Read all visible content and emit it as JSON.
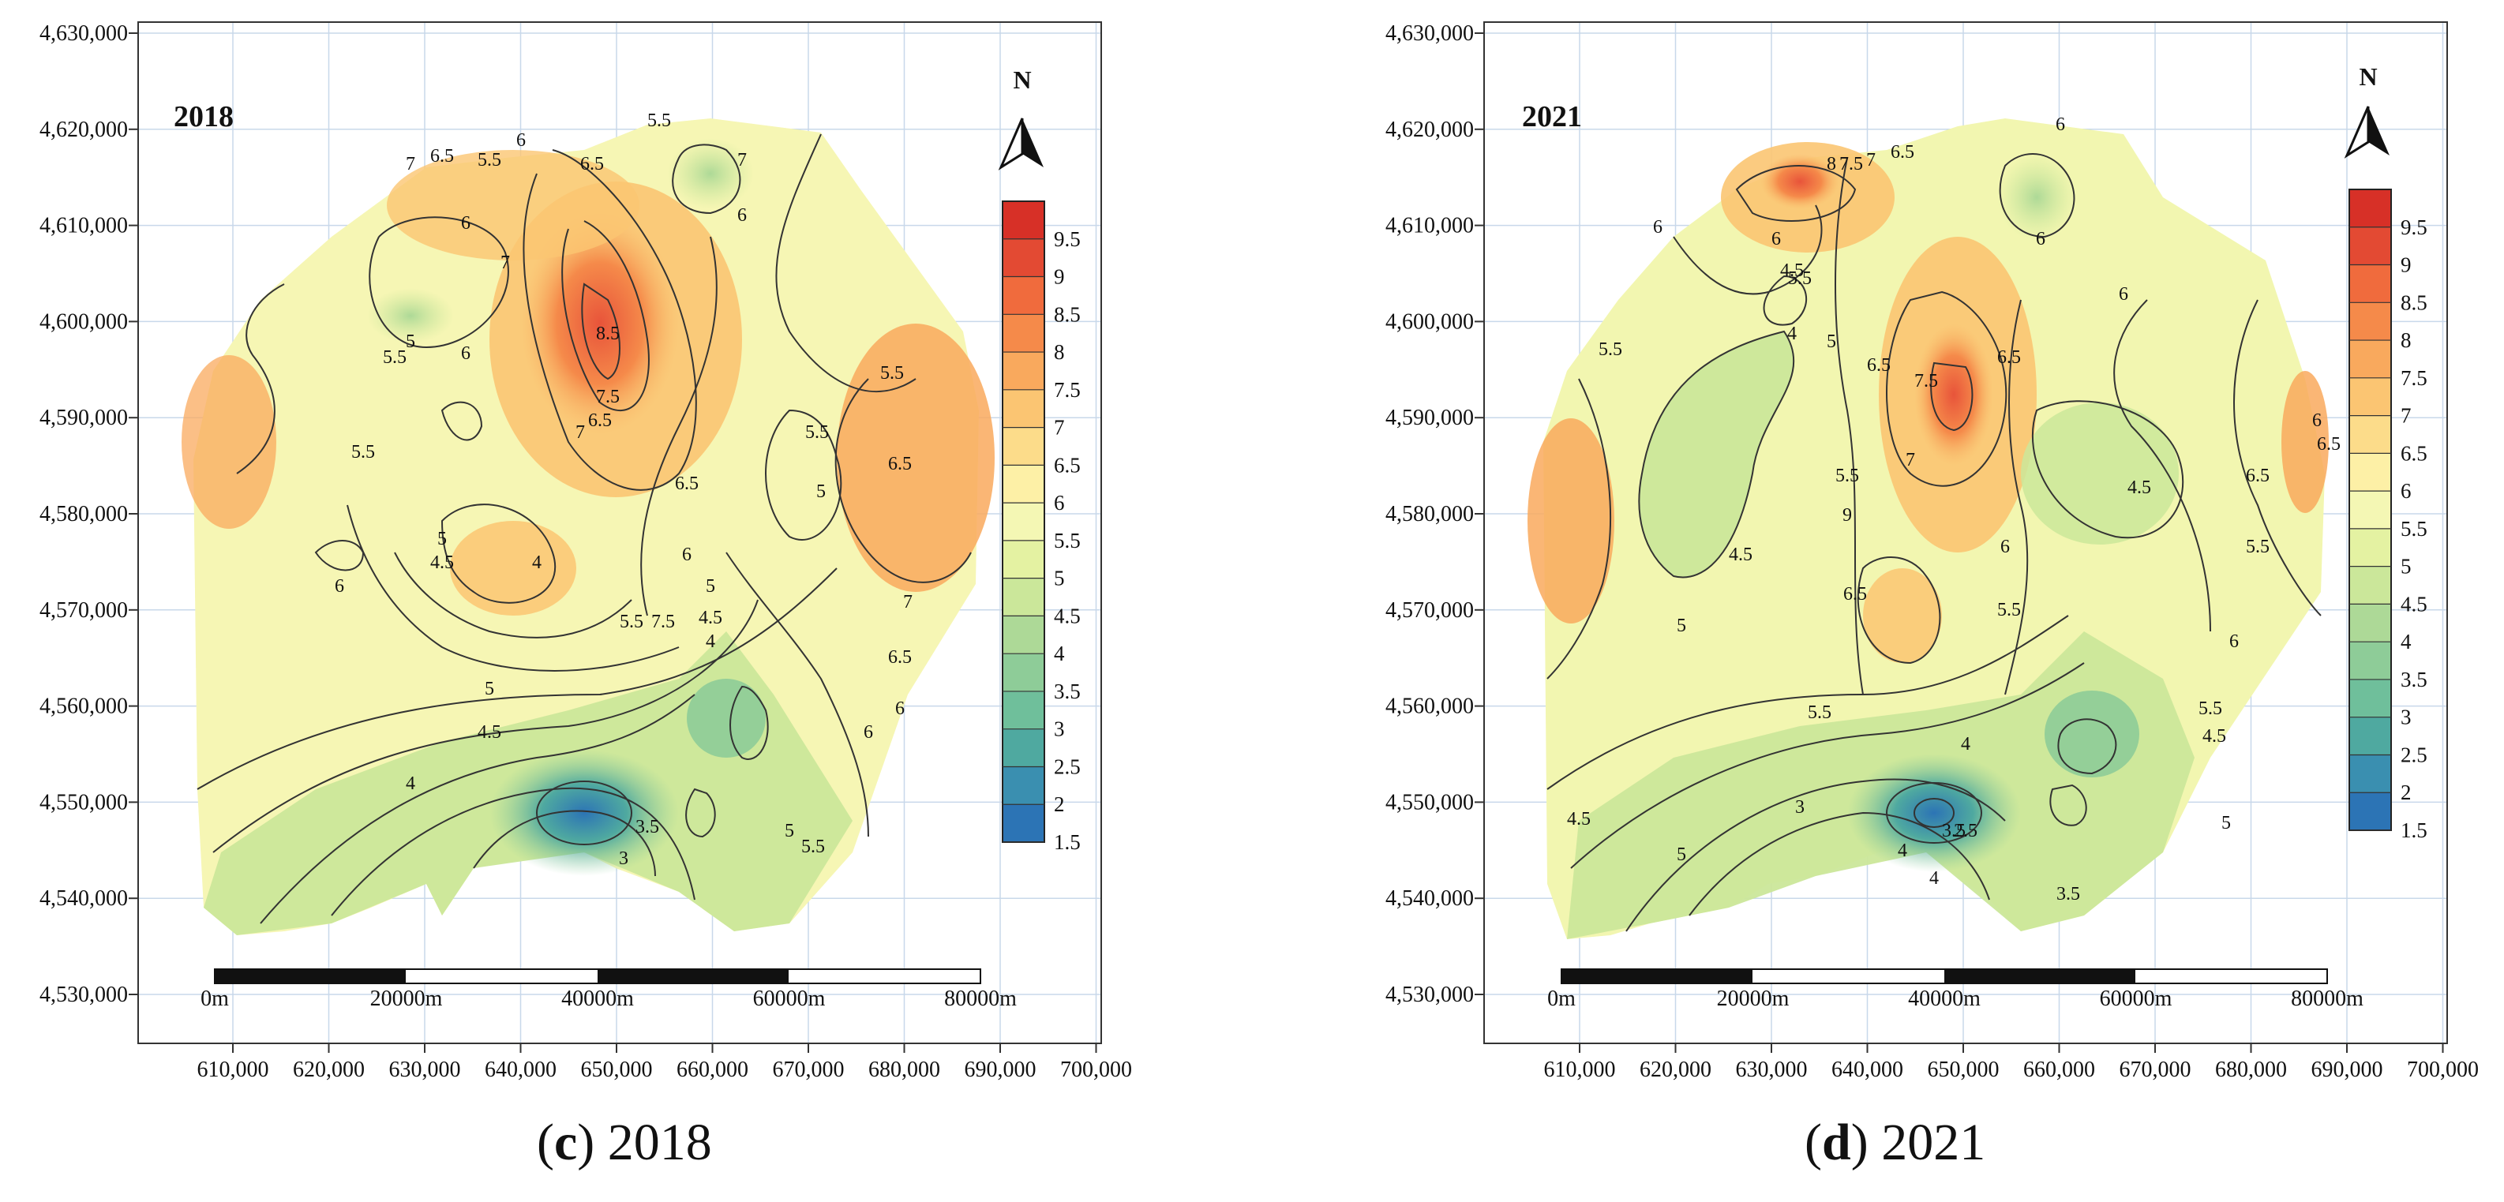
{
  "panels": [
    {
      "id": "c",
      "year_label": "2018",
      "caption_letter": "c",
      "caption_text": "2018",
      "x_ticks": [
        "610,000",
        "620,000",
        "630,000",
        "640,000",
        "650,000",
        "660,000",
        "670,000",
        "680,000",
        "690,000",
        "700,000"
      ],
      "y_ticks": [
        "4,630,000",
        "4,620,000",
        "4,610,000",
        "4,600,000",
        "4,590,000",
        "4,580,000",
        "4,570,000",
        "4,560,000",
        "4,550,000",
        "4,540,000",
        "4,530,000"
      ],
      "legend_labels": [
        "9.5",
        "9",
        "8.5",
        "8",
        "7.5",
        "7",
        "6.5",
        "6",
        "5.5",
        "5",
        "4.5",
        "4",
        "3.5",
        "3",
        "2.5",
        "2",
        "1.5"
      ],
      "north_label": "N",
      "scale_labels": [
        "0m",
        "20000m",
        "40000m",
        "60000m",
        "80000m"
      ],
      "contour_labels": [
        "7",
        "6.5",
        "6",
        "5.5",
        "5.5",
        "6.5",
        "7",
        "6",
        "5",
        "5.5",
        "6",
        "8.5",
        "7.5",
        "7",
        "6.5",
        "6",
        "6.5",
        "7.5",
        "5.5",
        "5",
        "5.5",
        "6.5",
        "6",
        "7",
        "5.5",
        "6",
        "5",
        "4.5",
        "4",
        "3.5",
        "3",
        "4.5",
        "5",
        "4",
        "7",
        "6.5",
        "6",
        "5.5",
        "5",
        "4.5",
        "4",
        "5.5",
        "5",
        "6"
      ]
    },
    {
      "id": "d",
      "year_label": "2021",
      "caption_letter": "d",
      "caption_text": "2021",
      "x_ticks": [
        "610,000",
        "620,000",
        "630,000",
        "640,000",
        "650,000",
        "660,000",
        "670,000",
        "680,000",
        "690,000",
        "700,000"
      ],
      "y_ticks": [
        "4,630,000",
        "4,620,000",
        "4,610,000",
        "4,600,000",
        "4,590,000",
        "4,580,000",
        "4,570,000",
        "4,560,000",
        "4,550,000",
        "4,540,000",
        "4,530,000"
      ],
      "legend_labels": [
        "9.5",
        "9",
        "8.5",
        "8",
        "7.5",
        "7",
        "6.5",
        "6",
        "5.5",
        "5",
        "4.5",
        "4",
        "3.5",
        "3",
        "2.5",
        "2",
        "1.5"
      ],
      "north_label": "N",
      "scale_labels": [
        "0m",
        "20000m",
        "40000m",
        "60000m",
        "80000m"
      ],
      "contour_labels": [
        "8",
        "7.5",
        "7",
        "6.5",
        "6",
        "6",
        "6",
        "5.5",
        "4.5",
        "4",
        "5",
        "6",
        "5.5",
        "6.5",
        "7.5",
        "7",
        "6.5",
        "9",
        "5.5",
        "6",
        "5",
        "6.5",
        "5.5",
        "4.5",
        "4",
        "3.5",
        "2.5",
        "3",
        "3.5",
        "4",
        "4.5",
        "5",
        "5.5",
        "6",
        "6.5",
        "5.5",
        "4.5",
        "4",
        "6",
        "5.5",
        "5",
        "4.5",
        "6.5",
        "6"
      ]
    }
  ],
  "colors": {
    "legend_ramp": [
      "#d73027",
      "#e34a33",
      "#f06b3d",
      "#f58a4a",
      "#f9a95d",
      "#fbc572",
      "#fcdc8a",
      "#fdf0a6",
      "#f4f7b4",
      "#e4f2a2",
      "#cbe79a",
      "#add997",
      "#8ecc98",
      "#6fbf9b",
      "#4fa9a0",
      "#3a8fb0",
      "#2c74b5"
    ],
    "grid": "#c8d8ea",
    "frame": "#333333"
  }
}
